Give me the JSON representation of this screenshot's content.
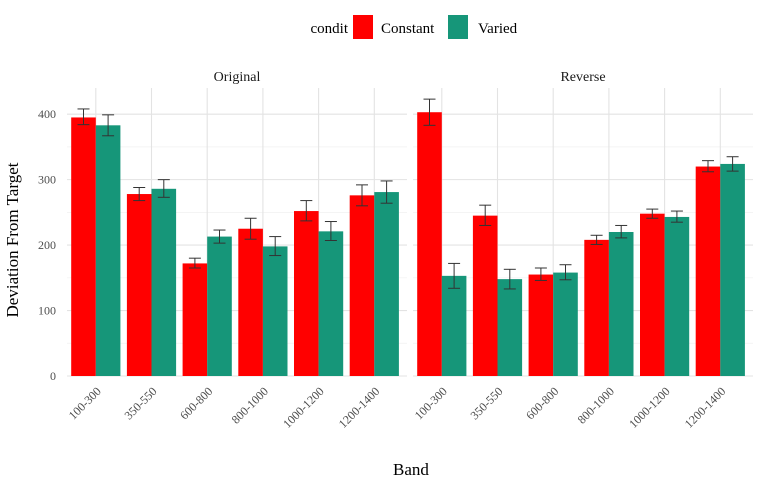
{
  "chart_data": {
    "type": "bar",
    "xlabel": "Band",
    "ylabel": "Deviation From Target",
    "ylim": [
      0,
      440
    ],
    "yticks": [
      0,
      100,
      200,
      300,
      400
    ],
    "grid": true,
    "legend": {
      "title": "condit",
      "placement": "top",
      "entries": [
        {
          "name": "Constant",
          "color": "#FF0000"
        },
        {
          "name": "Varied",
          "color": "#169679"
        }
      ]
    },
    "categories": [
      "100-300",
      "350-550",
      "600-800",
      "800-1000",
      "1000-1200",
      "1200-1400"
    ],
    "panels": [
      {
        "title": "Original",
        "series": [
          {
            "name": "Constant",
            "values": [
              395,
              278,
              172,
              225,
              252,
              276
            ],
            "err_low": [
              384,
              268,
              165,
              209,
              237,
              260
            ],
            "err_high": [
              408,
              288,
              180,
              241,
              268,
              292
            ]
          },
          {
            "name": "Varied",
            "values": [
              383,
              286,
              213,
              198,
              221,
              281
            ],
            "err_low": [
              367,
              273,
              203,
              184,
              207,
              264
            ],
            "err_high": [
              399,
              300,
              223,
              213,
              236,
              298
            ]
          }
        ]
      },
      {
        "title": "Reverse",
        "series": [
          {
            "name": "Constant",
            "values": [
              403,
              245,
              155,
              208,
              248,
              320
            ],
            "err_low": [
              383,
              230,
              146,
              201,
              241,
              312
            ],
            "err_high": [
              423,
              261,
              165,
              215,
              255,
              329
            ]
          },
          {
            "name": "Varied",
            "values": [
              153,
              148,
              158,
              220,
              243,
              324
            ],
            "err_low": [
              134,
              133,
              147,
              211,
              235,
              313
            ],
            "err_high": [
              172,
              163,
              170,
              230,
              252,
              335
            ]
          }
        ]
      }
    ]
  }
}
